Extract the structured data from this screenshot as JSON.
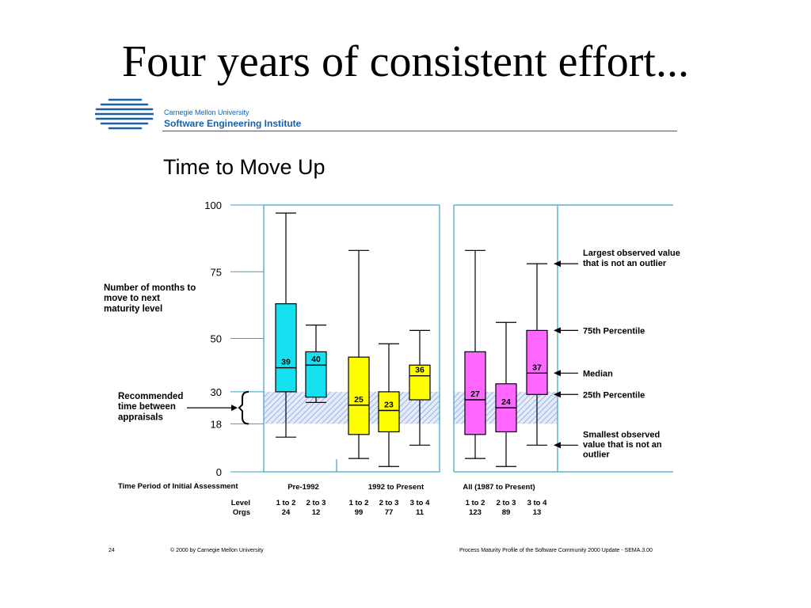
{
  "slide": {
    "title": "Four years of consistent effort...",
    "org_line1": "Carnegie Mellon University",
    "org_line2": "Software Engineering Institute",
    "page_number": "24",
    "copyright": "© 2000 by Carnegie Mellon University",
    "source": "Process Maturity Profile of the Software Community 2000 Update - SEMA.3.00"
  },
  "chart_data": {
    "type": "box",
    "title": "Time to Move Up",
    "ylabel": "Number of months to move to next maturity level",
    "y_ticks": [
      0,
      18,
      30,
      50,
      75,
      100
    ],
    "ylim": [
      0,
      100
    ],
    "recommended_band": {
      "low": 18,
      "high": 30,
      "label": "Recommended time between appraisals"
    },
    "xlabel": "Time Period of Initial Assessment",
    "row_labels": [
      "Level",
      "Orgs"
    ],
    "groups": [
      {
        "name": "Pre-1992",
        "boxes": [
          {
            "level": "1 to 2",
            "orgs": "24",
            "min": 13,
            "q1": 30,
            "median": 39,
            "q3": 63,
            "max": 97,
            "label": "39",
            "color": "#14e0f0"
          },
          {
            "level": "2 to 3",
            "orgs": "12",
            "min": 26,
            "q1": 28,
            "median": 40,
            "q3": 45,
            "max": 55,
            "label": "40",
            "color": "#14e0f0"
          }
        ]
      },
      {
        "name": "1992 to Present",
        "boxes": [
          {
            "level": "1 to 2",
            "orgs": "99",
            "min": 5,
            "q1": 14,
            "median": 25,
            "q3": 43,
            "max": 83,
            "label": "25",
            "color": "#ffff00"
          },
          {
            "level": "2 to 3",
            "orgs": "77",
            "min": 2,
            "q1": 15,
            "median": 23,
            "q3": 30,
            "max": 48,
            "label": "23",
            "color": "#ffff00"
          },
          {
            "level": "3 to 4",
            "orgs": "11",
            "min": 10,
            "q1": 27,
            "median": 36,
            "q3": 40,
            "max": 53,
            "label": "36",
            "color": "#ffff00"
          }
        ]
      },
      {
        "name": "All (1987 to Present)",
        "boxes": [
          {
            "level": "1 to 2",
            "orgs": "123",
            "min": 5,
            "q1": 14,
            "median": 27,
            "q3": 45,
            "max": 83,
            "label": "27",
            "color": "#ff66ff"
          },
          {
            "level": "2 to 3",
            "orgs": "89",
            "min": 2,
            "q1": 15,
            "median": 24,
            "q3": 33,
            "max": 56,
            "label": "24",
            "color": "#ff66ff"
          },
          {
            "level": "3 to 4",
            "orgs": "13",
            "min": 10,
            "q1": 29,
            "median": 37,
            "q3": 53,
            "max": 78,
            "label": "37",
            "color": "#ff66ff"
          }
        ]
      }
    ],
    "legend": [
      {
        "value": 78,
        "text": "Largest observed value that is not an outlier"
      },
      {
        "value": 53,
        "text": "75th Percentile"
      },
      {
        "value": 37,
        "text": "Median"
      },
      {
        "value": 29,
        "text": "25th Percentile"
      },
      {
        "value": 10,
        "text": "Smallest observed value that is not an outlier"
      }
    ],
    "colors": {
      "frame": "#3aa0c0",
      "band": "#8aa4e0"
    }
  }
}
